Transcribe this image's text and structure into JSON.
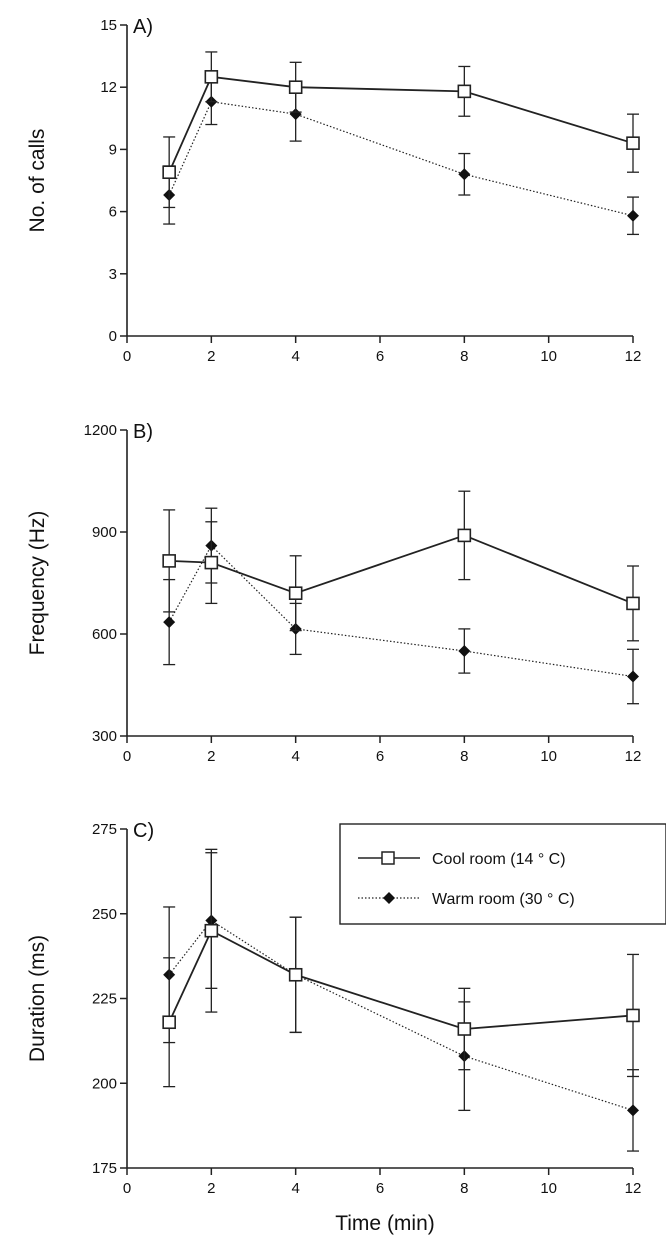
{
  "figure": {
    "xlabel": "Time (min)",
    "legend": {
      "position": "top-right of panel C",
      "entries": [
        {
          "label": "Cool room (14 ° C)",
          "marker": "open-square",
          "line": "solid"
        },
        {
          "label": "Warm room (30 ° C)",
          "marker": "filled-diamond",
          "line": "dotted"
        }
      ]
    }
  },
  "chart_data": [
    {
      "type": "line",
      "title": "A)",
      "xlabel": "",
      "ylabel": "No. of calls",
      "xlim": [
        0,
        12
      ],
      "ylim": [
        0,
        15
      ],
      "xticks": [
        0,
        2,
        4,
        6,
        8,
        10,
        12
      ],
      "yticks": [
        0,
        3,
        6,
        9,
        12,
        15
      ],
      "x": [
        1,
        2,
        4,
        8,
        12
      ],
      "series": [
        {
          "name": "Cool room (14 ° C)",
          "values": [
            7.9,
            12.5,
            12.0,
            11.8,
            9.3
          ],
          "error": [
            1.7,
            1.2,
            1.2,
            1.2,
            1.4
          ]
        },
        {
          "name": "Warm room (30 ° C)",
          "values": [
            6.8,
            11.3,
            10.7,
            7.8,
            5.8
          ],
          "error": [
            1.4,
            1.1,
            1.3,
            1.0,
            0.9
          ]
        }
      ],
      "grid": false
    },
    {
      "type": "line",
      "title": "B)",
      "xlabel": "",
      "ylabel": "Frequency (Hz)",
      "xlim": [
        0,
        12
      ],
      "ylim": [
        300,
        1200
      ],
      "xticks": [
        0,
        2,
        4,
        6,
        8,
        10,
        12
      ],
      "yticks": [
        300,
        600,
        900,
        1200
      ],
      "x": [
        1,
        2,
        4,
        8,
        12
      ],
      "series": [
        {
          "name": "Cool room (14 ° C)",
          "values": [
            815,
            810,
            720,
            890,
            690
          ],
          "error": [
            150,
            120,
            110,
            130,
            110
          ]
        },
        {
          "name": "Warm room (30 ° C)",
          "values": [
            635,
            860,
            615,
            550,
            475
          ],
          "error": [
            125,
            110,
            75,
            65,
            80
          ]
        }
      ],
      "grid": false
    },
    {
      "type": "line",
      "title": "C)",
      "xlabel": "Time (min)",
      "ylabel": "Duration (ms)",
      "xlim": [
        0,
        12
      ],
      "ylim": [
        175,
        275
      ],
      "xticks": [
        0,
        2,
        4,
        6,
        8,
        10,
        12
      ],
      "yticks": [
        175,
        200,
        225,
        250,
        275
      ],
      "x": [
        1,
        2,
        4,
        8,
        12
      ],
      "series": [
        {
          "name": "Cool room (14 ° C)",
          "values": [
            218,
            245,
            232,
            216,
            220
          ],
          "error": [
            19,
            24,
            17,
            12,
            18
          ]
        },
        {
          "name": "Warm room (30 ° C)",
          "values": [
            232,
            248,
            232,
            208,
            192
          ],
          "error": [
            20,
            20,
            17,
            16,
            12
          ]
        }
      ],
      "grid": false
    }
  ]
}
